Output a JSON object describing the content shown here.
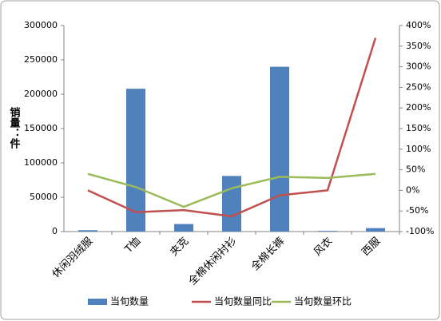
{
  "chart_data": {
    "type": "bar",
    "y_label": "销量：件",
    "categories": [
      "休闲羽绒服",
      "T恤",
      "夹克",
      "全棉休闲衬衫",
      "全棉长裤",
      "风衣",
      "西服"
    ],
    "series": [
      {
        "name": "当旬数量",
        "type": "bar",
        "color": "#4f81bd",
        "values": [
          2000,
          208000,
          11000,
          81000,
          240000,
          1000,
          5000
        ]
      },
      {
        "name": "当旬数量同比",
        "type": "line",
        "axis": "y2",
        "color": "#c0504d",
        "values": [
          0,
          -53,
          -48,
          -63,
          -12,
          0,
          370
        ]
      },
      {
        "name": "当旬数量环比",
        "type": "line",
        "axis": "y2",
        "color": "#9bbb59",
        "values": [
          40,
          8,
          -40,
          5,
          33,
          30,
          40
        ]
      }
    ],
    "ylim": [
      0,
      300000
    ],
    "yticks": [
      0,
      50000,
      100000,
      150000,
      200000,
      250000,
      300000
    ],
    "y2lim": [
      -100,
      400
    ],
    "y2ticks": [
      {
        "value": -100,
        "label": "-100%"
      },
      {
        "value": -50,
        "label": "-50%"
      },
      {
        "value": 0,
        "label": "0%"
      },
      {
        "value": 50,
        "label": "50%"
      },
      {
        "value": 100,
        "label": "100%"
      },
      {
        "value": 150,
        "label": "150%"
      },
      {
        "value": 200,
        "label": "200%"
      },
      {
        "value": 250,
        "label": "250%"
      },
      {
        "value": 300,
        "label": "300%"
      },
      {
        "value": 350,
        "label": "350%"
      },
      {
        "value": 400,
        "label": "400%"
      }
    ],
    "grid": false,
    "legend": "bottom"
  }
}
